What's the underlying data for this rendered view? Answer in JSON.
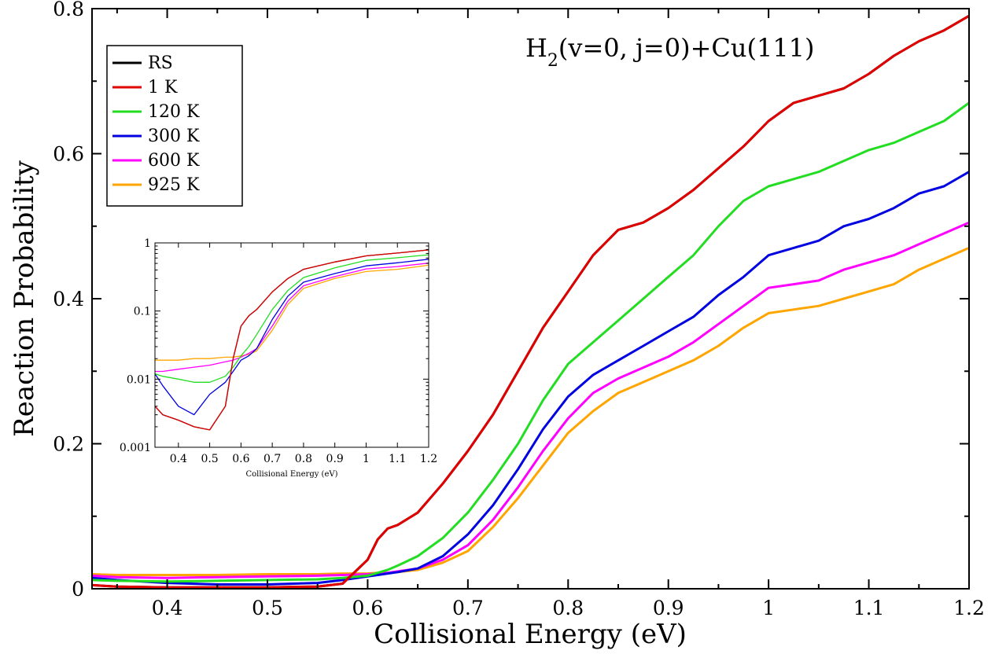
{
  "chart_data": {
    "type": "line",
    "title": "",
    "annotation": {
      "prefix": "H",
      "subscript": "2",
      "suffix": "(v=0, j=0)+Cu(111)"
    },
    "xlabel": "Collisional Energy (eV)",
    "ylabel": "Reaction Probability",
    "xlim": [
      0.325,
      1.2
    ],
    "ylim": [
      0,
      0.8
    ],
    "x_ticks": [
      "0.4",
      "0.5",
      "0.6",
      "0.7",
      "0.8",
      "0.9",
      "1",
      "1.1",
      "1.2"
    ],
    "y_ticks": [
      "0",
      "0.2",
      "0.4",
      "0.6",
      "0.8"
    ],
    "grid": false,
    "legend_position": "top-left",
    "x": [
      0.325,
      0.35,
      0.4,
      0.45,
      0.5,
      0.55,
      0.575,
      0.6,
      0.61,
      0.62,
      0.63,
      0.65,
      0.675,
      0.7,
      0.725,
      0.75,
      0.775,
      0.8,
      0.825,
      0.85,
      0.875,
      0.9,
      0.925,
      0.95,
      0.975,
      1.0,
      1.025,
      1.05,
      1.075,
      1.1,
      1.125,
      1.15,
      1.175,
      1.2
    ],
    "series": [
      {
        "name": "RS",
        "color": "#000000",
        "values": [
          0.005,
          0.003,
          0.002,
          0.002,
          0.002,
          0.003,
          0.007,
          0.04,
          0.068,
          0.083,
          0.088,
          0.105,
          0.145,
          0.19,
          0.24,
          0.3,
          0.36,
          0.41,
          0.46,
          0.495,
          0.505,
          0.525,
          0.55,
          0.58,
          0.61,
          0.645,
          0.67,
          0.68,
          0.69,
          0.71,
          0.735,
          0.755,
          0.77,
          0.79
        ]
      },
      {
        "name": "1 K",
        "color": "#e00000",
        "values": [
          0.005,
          0.003,
          0.002,
          0.002,
          0.002,
          0.003,
          0.007,
          0.04,
          0.068,
          0.083,
          0.088,
          0.105,
          0.145,
          0.19,
          0.24,
          0.3,
          0.36,
          0.41,
          0.46,
          0.495,
          0.505,
          0.525,
          0.55,
          0.58,
          0.61,
          0.645,
          0.67,
          0.68,
          0.69,
          0.71,
          0.735,
          0.755,
          0.77,
          0.79
        ]
      },
      {
        "name": "120 K",
        "color": "#22dd22",
        "values": [
          0.012,
          0.011,
          0.01,
          0.011,
          0.012,
          0.013,
          0.015,
          0.018,
          0.022,
          0.026,
          0.032,
          0.045,
          0.07,
          0.105,
          0.15,
          0.2,
          0.26,
          0.31,
          0.34,
          0.37,
          0.4,
          0.43,
          0.46,
          0.5,
          0.535,
          0.555,
          0.565,
          0.575,
          0.59,
          0.605,
          0.615,
          0.63,
          0.645,
          0.67
        ]
      },
      {
        "name": "300 K",
        "color": "#0000e0",
        "values": [
          0.015,
          0.012,
          0.008,
          0.006,
          0.006,
          0.008,
          0.012,
          0.017,
          0.019,
          0.021,
          0.023,
          0.028,
          0.045,
          0.075,
          0.115,
          0.165,
          0.22,
          0.265,
          0.295,
          0.315,
          0.335,
          0.355,
          0.375,
          0.405,
          0.43,
          0.46,
          0.47,
          0.48,
          0.5,
          0.51,
          0.525,
          0.545,
          0.555,
          0.575
        ]
      },
      {
        "name": "600 K",
        "color": "#ff00ff",
        "values": [
          0.018,
          0.016,
          0.015,
          0.016,
          0.017,
          0.018,
          0.019,
          0.02,
          0.021,
          0.022,
          0.024,
          0.028,
          0.04,
          0.06,
          0.095,
          0.14,
          0.19,
          0.235,
          0.27,
          0.29,
          0.305,
          0.32,
          0.34,
          0.365,
          0.39,
          0.415,
          0.42,
          0.425,
          0.44,
          0.45,
          0.46,
          0.475,
          0.49,
          0.505
        ]
      },
      {
        "name": "925 K",
        "color": "#ffa500",
        "values": [
          0.02,
          0.019,
          0.019,
          0.019,
          0.02,
          0.02,
          0.021,
          0.021,
          0.022,
          0.022,
          0.023,
          0.026,
          0.036,
          0.052,
          0.085,
          0.125,
          0.17,
          0.215,
          0.245,
          0.27,
          0.285,
          0.3,
          0.315,
          0.335,
          0.36,
          0.38,
          0.385,
          0.39,
          0.4,
          0.41,
          0.42,
          0.44,
          0.455,
          0.47
        ]
      }
    ],
    "inset": {
      "type": "line",
      "xlabel": "Collisional Energy (eV)",
      "yscale": "log",
      "xlim": [
        0.325,
        1.2
      ],
      "ylim": [
        0.001,
        1
      ],
      "x_ticks": [
        "0.4",
        "0.5",
        "0.6",
        "0.7",
        "0.8",
        "0.9",
        "1",
        "1.1",
        "1.2"
      ],
      "y_ticks": [
        "0.001",
        "0.01",
        "0.1",
        "1"
      ],
      "x": [
        0.325,
        0.35,
        0.4,
        0.45,
        0.5,
        0.55,
        0.575,
        0.6,
        0.625,
        0.65,
        0.7,
        0.75,
        0.8,
        0.9,
        1.0,
        1.1,
        1.2
      ],
      "series": [
        {
          "name": "RS",
          "color": "#000000",
          "values": [
            0.004,
            0.003,
            0.0025,
            0.002,
            0.0018,
            0.004,
            0.02,
            0.06,
            0.085,
            0.105,
            0.19,
            0.3,
            0.41,
            0.525,
            0.645,
            0.71,
            0.79
          ]
        },
        {
          "name": "1 K",
          "color": "#e00000",
          "values": [
            0.004,
            0.003,
            0.0025,
            0.002,
            0.0018,
            0.004,
            0.02,
            0.06,
            0.085,
            0.105,
            0.19,
            0.3,
            0.41,
            0.525,
            0.645,
            0.71,
            0.79
          ]
        },
        {
          "name": "120 K",
          "color": "#22dd22",
          "values": [
            0.012,
            0.011,
            0.01,
            0.009,
            0.009,
            0.011,
            0.015,
            0.022,
            0.03,
            0.045,
            0.105,
            0.2,
            0.31,
            0.43,
            0.555,
            0.605,
            0.67
          ]
        },
        {
          "name": "300 K",
          "color": "#0000e0",
          "values": [
            0.012,
            0.008,
            0.004,
            0.003,
            0.006,
            0.009,
            0.013,
            0.019,
            0.022,
            0.028,
            0.075,
            0.165,
            0.265,
            0.355,
            0.46,
            0.51,
            0.575
          ]
        },
        {
          "name": "600 K",
          "color": "#ff00ff",
          "values": [
            0.013,
            0.013,
            0.014,
            0.015,
            0.016,
            0.018,
            0.019,
            0.021,
            0.024,
            0.028,
            0.06,
            0.14,
            0.235,
            0.32,
            0.415,
            0.45,
            0.505
          ]
        },
        {
          "name": "925 K",
          "color": "#ffa500",
          "values": [
            0.019,
            0.019,
            0.019,
            0.02,
            0.02,
            0.021,
            0.021,
            0.022,
            0.023,
            0.026,
            0.052,
            0.125,
            0.215,
            0.3,
            0.38,
            0.41,
            0.47
          ]
        }
      ]
    }
  }
}
